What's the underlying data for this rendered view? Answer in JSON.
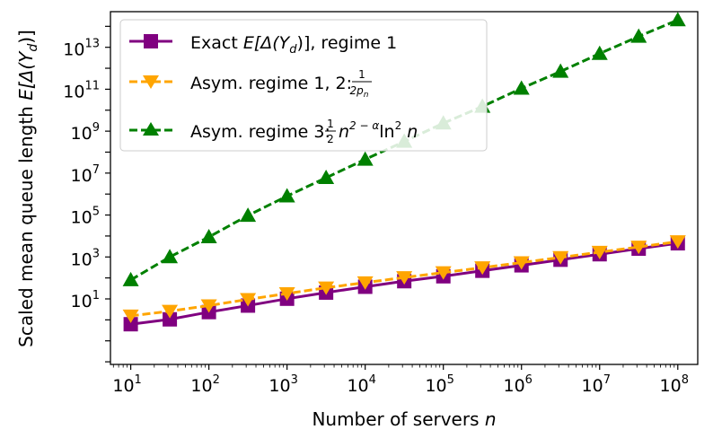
{
  "chart_data": {
    "type": "line",
    "xscale": "log",
    "yscale": "log",
    "xlabel_text": "Number of servers ",
    "xlabel_var": "n",
    "ylabel_text": "Scaled mean queue length ",
    "ylabel_expr": "E[Δ(Y",
    "ylabel_sub": "d",
    "ylabel_close": ")]",
    "xlim": [
      5.5,
      180000000
    ],
    "ylim": [
      0.0075,
      500000000000000
    ],
    "x_ticks": [
      {
        "value": 10,
        "base": "10",
        "exp": "1"
      },
      {
        "value": 100,
        "base": "10",
        "exp": "2"
      },
      {
        "value": 1000,
        "base": "10",
        "exp": "3"
      },
      {
        "value": 10000,
        "base": "10",
        "exp": "4"
      },
      {
        "value": 100000,
        "base": "10",
        "exp": "5"
      },
      {
        "value": 1000000,
        "base": "10",
        "exp": "6"
      },
      {
        "value": 10000000,
        "base": "10",
        "exp": "7"
      },
      {
        "value": 100000000,
        "base": "10",
        "exp": "8"
      }
    ],
    "y_ticks": [
      {
        "value": 10,
        "base": "10",
        "exp": "1"
      },
      {
        "value": 1000,
        "base": "10",
        "exp": "3"
      },
      {
        "value": 100000,
        "base": "10",
        "exp": "5"
      },
      {
        "value": 10000000,
        "base": "10",
        "exp": "7"
      },
      {
        "value": 1000000000,
        "base": "10",
        "exp": "9"
      },
      {
        "value": 100000000000,
        "base": "10",
        "exp": "11"
      },
      {
        "value": 10000000000000,
        "base": "10",
        "exp": "13"
      }
    ],
    "x": [
      10,
      31.6,
      100,
      316,
      1000,
      3160,
      10000,
      31600,
      100000,
      316000,
      1000000,
      3160000,
      10000000,
      31600000,
      100000000
    ],
    "series": [
      {
        "name": "Exact E[Δ(Y_d)], regime 1",
        "color": "#800080",
        "marker": "square",
        "dash": "solid",
        "values": [
          0.62,
          1.06,
          2.35,
          4.8,
          10.2,
          20,
          38,
          70,
          120,
          220,
          400,
          740,
          1350,
          2500,
          4500
        ]
      },
      {
        "name": "Asym. regime 1, 2: 1/(2p_n)",
        "color": "#FFA500",
        "marker": "triangle-down",
        "dash": "dashed",
        "values": [
          1.55,
          2.6,
          4.8,
          9.5,
          18,
          34,
          60,
          105,
          180,
          310,
          540,
          950,
          1700,
          3000,
          5400
        ]
      },
      {
        "name": "Asym. regime 3: ½n^(2−α)ln²n",
        "color": "#008000",
        "marker": "triangle-up",
        "dash": "dashed",
        "values": [
          80,
          1000,
          9000,
          95000,
          800000,
          6000000,
          45000000,
          320000000,
          2400000000,
          15000000000,
          110000000000,
          700000000000,
          5000000000000,
          33000000000000,
          200000000000000
        ]
      }
    ],
    "legend_position": "upper-left",
    "legend": {
      "entry1_pre": "Exact ",
      "entry1_math": "E[Δ(Y",
      "entry1_sub": "d",
      "entry1_post": ")], regime 1",
      "entry2_pre": "Asym. regime 1, 2: ",
      "entry2_num": "1",
      "entry2_den": "2p",
      "entry2_den_sub": "n",
      "entry3_pre": "Asym. regime 3: ",
      "entry3_num": "1",
      "entry3_den": "2",
      "entry3_n": "n",
      "entry3_exp": "2 − α",
      "entry3_ln": "ln",
      "entry3_ln_exp": "2",
      "entry3_tail": " n"
    }
  }
}
